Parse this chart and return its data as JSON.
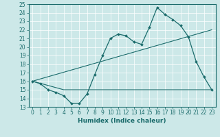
{
  "title": "",
  "xlabel": "Humidex (Indice chaleur)",
  "bg_color": "#cce8e8",
  "line_color": "#1a6b6b",
  "xlim": [
    -0.5,
    23.5
  ],
  "ylim": [
    13,
    25
  ],
  "xticks": [
    0,
    1,
    2,
    3,
    4,
    5,
    6,
    7,
    8,
    9,
    10,
    11,
    12,
    13,
    14,
    15,
    16,
    17,
    18,
    19,
    20,
    21,
    22,
    23
  ],
  "yticks": [
    13,
    14,
    15,
    16,
    17,
    18,
    19,
    20,
    21,
    22,
    23,
    24,
    25
  ],
  "line1_x": [
    0,
    1,
    2,
    3,
    4,
    5,
    6,
    7,
    8,
    9,
    10,
    11,
    12,
    13,
    14,
    15,
    16,
    17,
    18,
    19,
    20,
    21,
    22,
    23
  ],
  "line1_y": [
    16.0,
    15.7,
    15.0,
    14.7,
    14.3,
    13.4,
    13.4,
    14.5,
    16.8,
    19.0,
    21.0,
    21.5,
    21.3,
    20.6,
    20.3,
    22.3,
    24.6,
    23.8,
    23.2,
    22.5,
    21.2,
    18.3,
    16.5,
    15.0
  ],
  "line2_x": [
    0,
    23
  ],
  "line2_y": [
    16.0,
    22.0
  ],
  "line3_x": [
    0,
    4,
    23
  ],
  "line3_y": [
    16.0,
    15.0,
    15.0
  ],
  "tick_fontsize": 5.5,
  "xlabel_fontsize": 6.5
}
